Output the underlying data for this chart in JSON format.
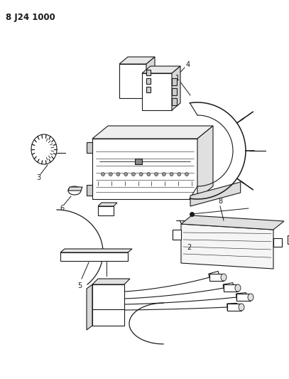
{
  "title": "8 J24 1000",
  "bg_color": "#ffffff",
  "line_color": "#1a1a1a",
  "fig_width": 4.07,
  "fig_height": 5.33,
  "dpi": 100
}
